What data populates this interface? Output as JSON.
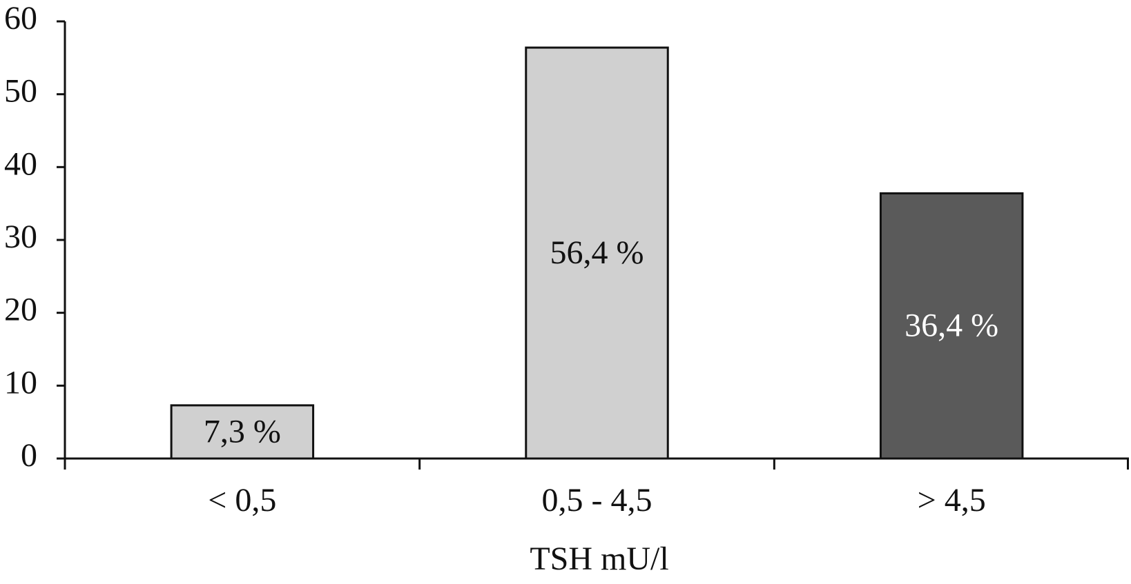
{
  "chart_data": {
    "type": "bar",
    "x_label": "TSH mU/l",
    "categories": [
      "< 0,5",
      "0,5 - 4,5",
      "> 4,5"
    ],
    "values": [
      7.3,
      56.4,
      36.4
    ],
    "value_labels": [
      "7,3 %",
      "56,4 %",
      "36,4 %"
    ],
    "colors": [
      "#d0d0d0",
      "#d0d0d0",
      "#5a5a5a"
    ],
    "value_label_colors": [
      "#111111",
      "#111111",
      "#ffffff"
    ],
    "ylim": [
      0,
      60
    ],
    "yticks": [
      0,
      10,
      20,
      30,
      40,
      50,
      60
    ],
    "grid": false
  }
}
